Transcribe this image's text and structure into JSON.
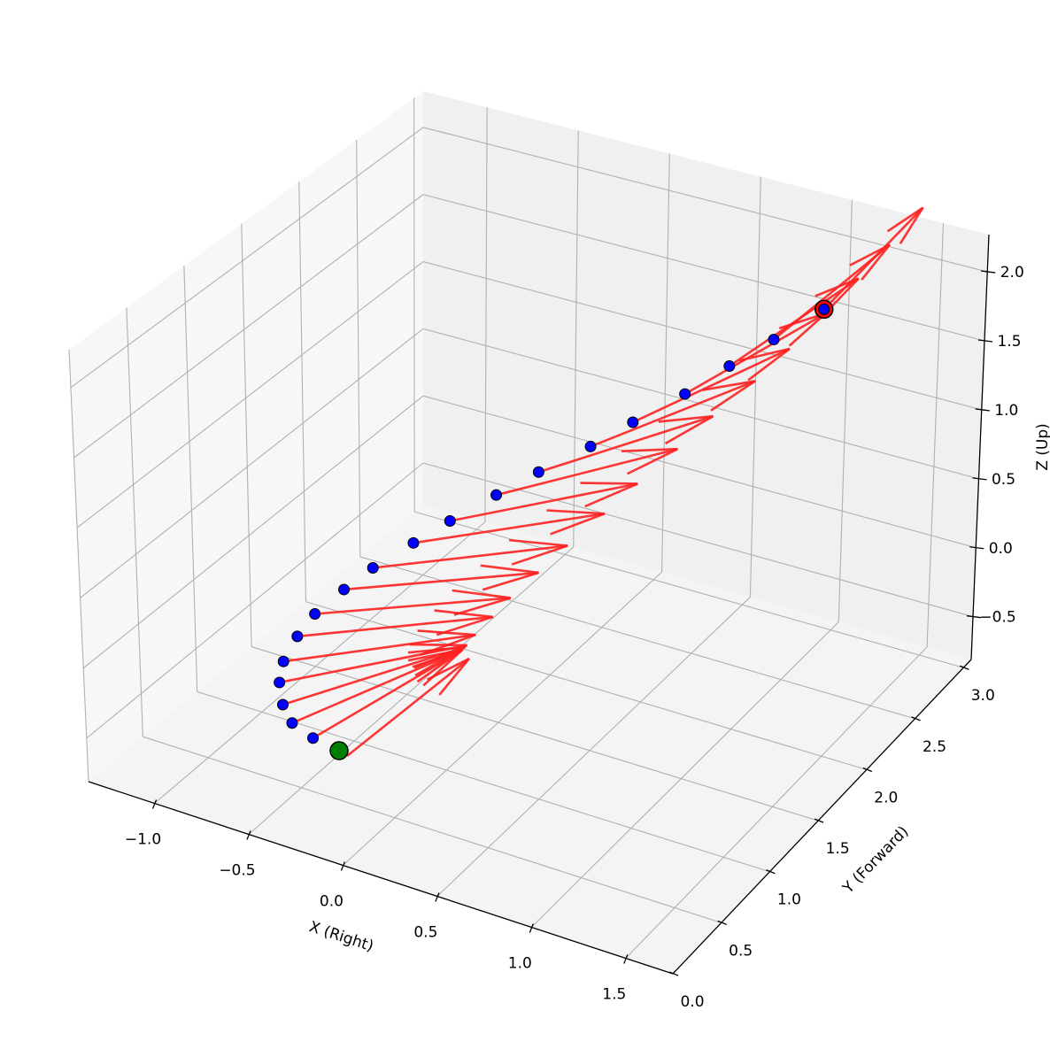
{
  "chart_data": {
    "type": "3d-line-quiver",
    "title": "",
    "xlabel": "X (Right)",
    "ylabel": "Y (Forward)",
    "zlabel": "Z (Up)",
    "xlim": [
      -1.35,
      1.75
    ],
    "ylim": [
      0,
      3.08
    ],
    "zlim": [
      -0.81,
      2.27
    ],
    "grid": true,
    "x_ticks": [
      -1.0,
      -0.5,
      0.0,
      0.5,
      1.0,
      1.5
    ],
    "x_tick_labels": [
      "−1.0",
      "−0.5",
      "0.0",
      "0.5",
      "1.0",
      "1.5"
    ],
    "y_ticks": [
      0.0,
      0.5,
      1.0,
      1.5,
      2.0,
      2.5,
      3.0
    ],
    "y_tick_labels": [
      "0.0",
      "0.5",
      "1.0",
      "1.5",
      "2.0",
      "2.5",
      "3.0"
    ],
    "z_ticks": [
      -0.5,
      0.0,
      0.5,
      1.0,
      1.5,
      2.0
    ],
    "z_tick_labels": [
      "−0.5",
      "0.0",
      "0.5",
      "1.0",
      "1.5",
      "2.0"
    ],
    "positions": [
      [
        0.0,
        0.0,
        0.0
      ],
      [
        -0.26,
        0.158,
        -0.1
      ],
      [
        -0.45,
        0.316,
        -0.19
      ],
      [
        -0.58,
        0.474,
        -0.23
      ],
      [
        -0.68,
        0.632,
        -0.23
      ],
      [
        -0.74,
        0.789,
        -0.22
      ],
      [
        -0.75,
        0.947,
        -0.16
      ],
      [
        -0.74,
        1.105,
        -0.11
      ],
      [
        -0.67,
        1.263,
        -0.02
      ],
      [
        -0.6,
        1.421,
        0.05
      ],
      [
        -0.47,
        1.579,
        0.17
      ],
      [
        -0.36,
        1.737,
        0.26
      ],
      [
        -0.2,
        1.895,
        0.4
      ],
      [
        -0.06,
        2.053,
        0.51
      ],
      [
        0.13,
        2.211,
        0.66
      ],
      [
        0.27,
        2.368,
        0.78
      ],
      [
        0.46,
        2.526,
        0.95
      ],
      [
        0.61,
        2.684,
        1.1
      ],
      [
        0.76,
        2.842,
        1.24
      ],
      [
        0.94,
        3.0,
        1.42
      ]
    ],
    "directions": [
      [
        0.119,
        1.024,
        0
      ],
      [
        0.265,
        1.015,
        0
      ],
      [
        0.41,
        0.962,
        0
      ],
      [
        0.519,
        0.87,
        0
      ],
      [
        0.62,
        0.73,
        0
      ],
      [
        0.679,
        0.661,
        0
      ],
      [
        0.721,
        0.616,
        0
      ],
      [
        0.735,
        0.59,
        0
      ],
      [
        0.728,
        0.594,
        0
      ],
      [
        0.707,
        0.634,
        0
      ],
      [
        0.665,
        0.679,
        0
      ],
      [
        0.62,
        0.73,
        0
      ],
      [
        0.56,
        0.781,
        0
      ],
      [
        0.494,
        0.838,
        0
      ],
      [
        0.416,
        0.887,
        0
      ],
      [
        0.353,
        0.928,
        0
      ],
      [
        0.26,
        0.943,
        0
      ],
      [
        0.186,
        0.968,
        0
      ],
      [
        0.104,
        0.99,
        0
      ],
      [
        0.008,
        1.0,
        0
      ]
    ],
    "start_marker": {
      "index": 0,
      "color": "#008000"
    },
    "end_marker": {
      "index": 19,
      "color": "#ff0000"
    },
    "point_color": "#0000ff",
    "arrow_color": "#ff2020"
  }
}
